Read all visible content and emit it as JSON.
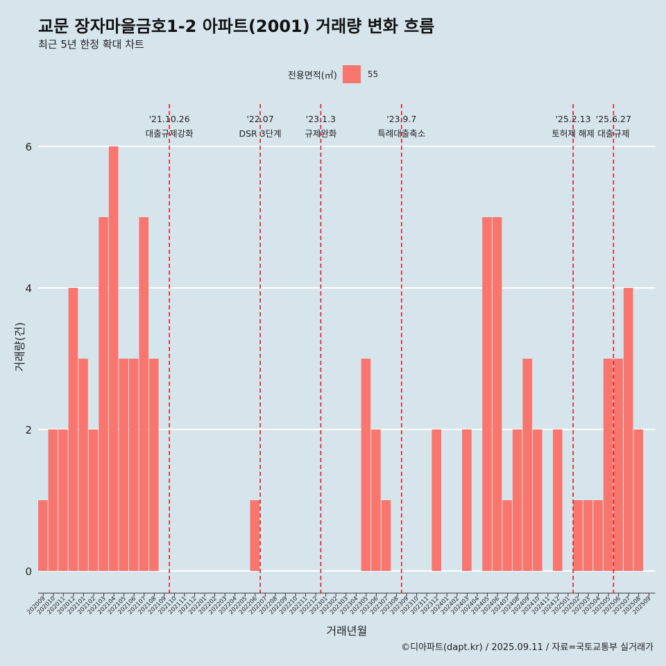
{
  "title": "교문 장자마을금호1-2 아파트(2001) 거래량 변화 흐름",
  "subtitle": "최근 5년 한정 확대 차트",
  "caption": "©디아파트(dapt.kr) / 2025.09.11 / 자료=국토교통부 실거래가",
  "colors": {
    "bar": "#f8766d",
    "vline": "#e41a1c",
    "background": "#d6e4ec",
    "grid": "#ffffff"
  },
  "chart_data": {
    "type": "bar",
    "xlabel": "거래년월",
    "ylabel": "거래량(건)",
    "ylim": [
      0,
      6
    ],
    "yticks": [
      0,
      2,
      4,
      6
    ],
    "legend": {
      "title": "전용면적(㎡)",
      "placement": "top",
      "series": [
        "55"
      ]
    },
    "grid": true,
    "categories": [
      "202009",
      "202010",
      "202011",
      "202012",
      "202101",
      "202102",
      "202103",
      "202104",
      "202105",
      "202106",
      "202107",
      "202108",
      "202109",
      "202110",
      "202111",
      "202112",
      "202201",
      "202202",
      "202203",
      "202204",
      "202205",
      "202206",
      "202207",
      "202208",
      "202209",
      "202210",
      "202211",
      "202212",
      "202301",
      "202302",
      "202303",
      "202304",
      "202305",
      "202306",
      "202307",
      "202308",
      "202309",
      "202310",
      "202311",
      "202312",
      "202401",
      "202402",
      "202403",
      "202404",
      "202405",
      "202406",
      "202407",
      "202408",
      "202409",
      "202410",
      "202411",
      "202412",
      "202501",
      "202502",
      "202503",
      "202504",
      "202505",
      "202506",
      "202507",
      "202508",
      "202509"
    ],
    "series": [
      {
        "name": "55",
        "values": [
          1,
          2,
          2,
          4,
          3,
          2,
          5,
          6,
          3,
          3,
          5,
          3,
          0,
          0,
          0,
          0,
          0,
          0,
          0,
          0,
          0,
          1,
          0,
          0,
          0,
          0,
          0,
          0,
          0,
          0,
          0,
          0,
          3,
          2,
          1,
          0,
          0,
          0,
          0,
          2,
          0,
          0,
          2,
          0,
          5,
          5,
          1,
          2,
          3,
          2,
          0,
          2,
          0,
          1,
          1,
          1,
          3,
          3,
          4,
          2,
          0
        ]
      }
    ],
    "annotations": [
      {
        "date": "'21.10.26",
        "label": "대출규제강화",
        "at": "202110"
      },
      {
        "date": "'22.07",
        "label": "DSR 3단계",
        "at": "202207"
      },
      {
        "date": "'23.1.3",
        "label": "규제완화",
        "at": "202301"
      },
      {
        "date": "'23.9.7",
        "label": "특례대출축소",
        "at": "202309"
      },
      {
        "date": "'25.2.13",
        "label": "토허제 해제",
        "at": "202502"
      },
      {
        "date": "'25.6.27",
        "label": "대출규제",
        "at": "202506"
      }
    ]
  }
}
